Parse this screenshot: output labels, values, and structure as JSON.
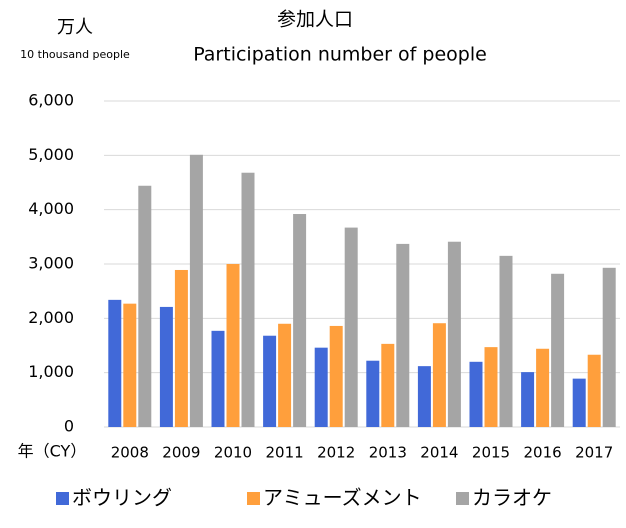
{
  "chart_data": {
    "type": "bar",
    "title": "参加人口",
    "subtitle": "Participation number of people",
    "y_unit": "万人",
    "y_unit_en": "10 thousand people",
    "x_unit": "年（CY）",
    "categories": [
      "2008",
      "2009",
      "2010",
      "2011",
      "2012",
      "2013",
      "2014",
      "2015",
      "2016",
      "2017"
    ],
    "series": [
      {
        "name": "ボウリング",
        "color": "#4169d8",
        "values": [
          2340,
          2210,
          1770,
          1680,
          1460,
          1220,
          1120,
          1200,
          1010,
          890
        ]
      },
      {
        "name": "アミューズメント",
        "color": "#ff9f3c",
        "values": [
          2270,
          2890,
          3000,
          1900,
          1860,
          1530,
          1910,
          1470,
          1440,
          1330
        ]
      },
      {
        "name": "カラオケ",
        "color": "#a5a5a5",
        "values": [
          4440,
          5010,
          4680,
          3920,
          3670,
          3370,
          3410,
          3150,
          2820,
          2930
        ]
      }
    ],
    "ylim": [
      0,
      6000
    ],
    "yticks": [
      0,
      {
        "value": 1000,
        "label": "1,000"
      },
      {
        "value": 2000,
        "label": "2,000"
      },
      {
        "value": 3000,
        "label": "3,000"
      },
      {
        "value": 4000,
        "label": "4,000"
      },
      {
        "value": 5000,
        "label": "5,000"
      },
      {
        "value": 6000,
        "label": "6,000"
      }
    ],
    "grid": true,
    "legend": "bottom"
  }
}
